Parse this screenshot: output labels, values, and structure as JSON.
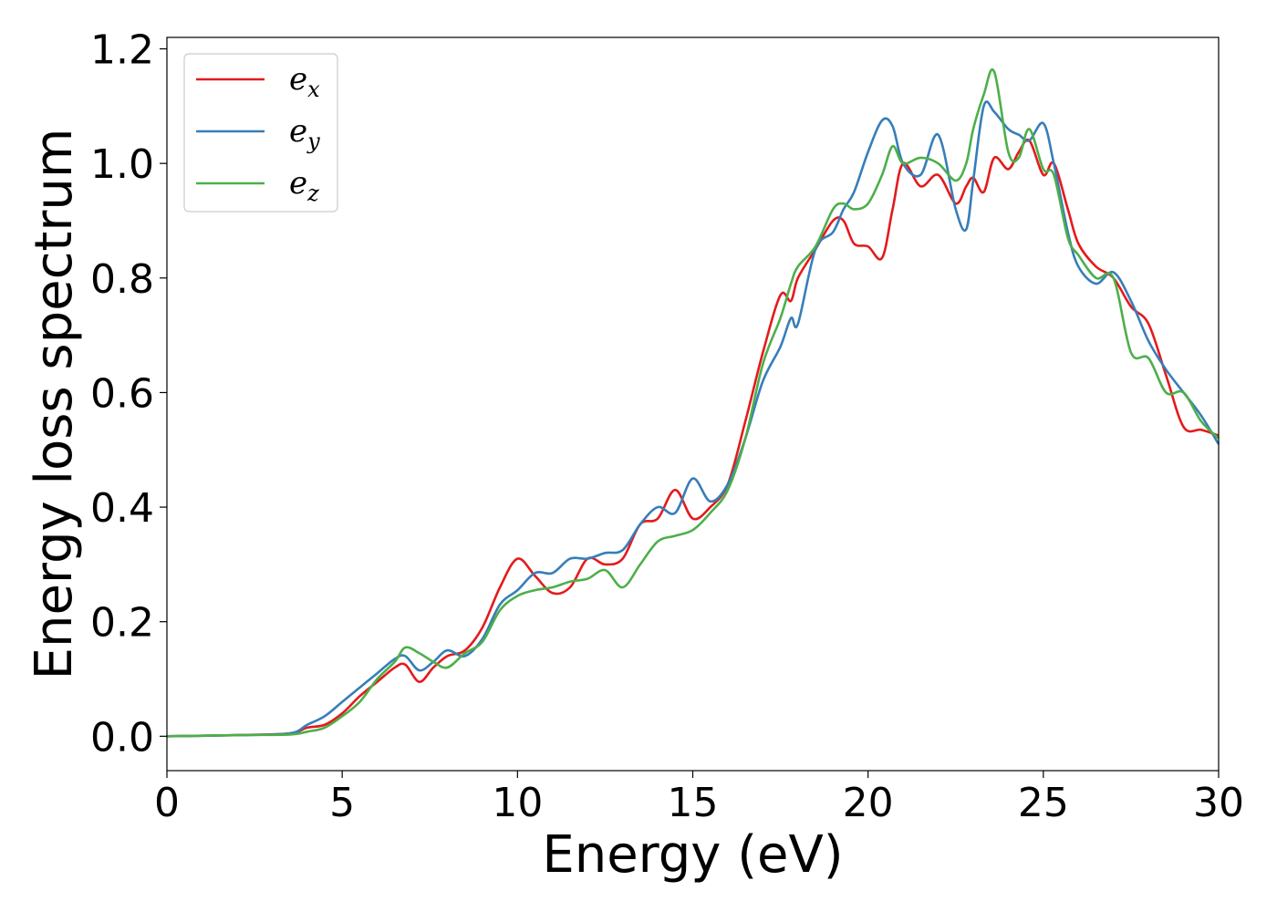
{
  "chart_data": {
    "type": "line",
    "xlabel": "Energy (eV)",
    "ylabel": "Energy loss spectrum",
    "xlim": [
      0,
      30
    ],
    "ylim": [
      -0.06,
      1.22
    ],
    "xticks": [
      0,
      5,
      10,
      15,
      20,
      25,
      30
    ],
    "yticks": [
      0.0,
      0.2,
      0.4,
      0.6,
      0.8,
      1.0,
      1.2
    ],
    "xtick_labels": [
      "0",
      "5",
      "10",
      "15",
      "20",
      "25",
      "30"
    ],
    "ytick_labels": [
      "0.0",
      "0.2",
      "0.4",
      "0.6",
      "0.8",
      "1.0",
      "1.2"
    ],
    "grid": false,
    "legend_position": "top-left",
    "series": [
      {
        "name": "e",
        "subscript": "x",
        "color": "#e41a1c",
        "x": [
          0,
          2,
          3.5,
          4.0,
          4.5,
          5.0,
          5.5,
          6.0,
          6.5,
          6.8,
          7.2,
          7.6,
          8.0,
          8.5,
          9.0,
          9.5,
          10.0,
          10.5,
          11.0,
          11.5,
          12.0,
          12.5,
          13.0,
          13.5,
          14.0,
          14.5,
          15.0,
          15.5,
          16.0,
          16.5,
          17.0,
          17.5,
          17.8,
          18.0,
          18.5,
          19.0,
          19.3,
          19.6,
          20.0,
          20.4,
          20.7,
          21.0,
          21.5,
          22.0,
          22.5,
          22.8,
          23.0,
          23.3,
          23.6,
          24.0,
          24.3,
          24.6,
          25.0,
          25.3,
          25.7,
          26.0,
          26.5,
          27.0,
          27.5,
          28.0,
          28.5,
          29.0,
          29.5,
          30.0
        ],
        "y": [
          0,
          0.002,
          0.005,
          0.015,
          0.02,
          0.04,
          0.07,
          0.095,
          0.12,
          0.125,
          0.095,
          0.12,
          0.14,
          0.15,
          0.19,
          0.26,
          0.31,
          0.28,
          0.25,
          0.26,
          0.31,
          0.3,
          0.31,
          0.37,
          0.38,
          0.43,
          0.38,
          0.4,
          0.44,
          0.55,
          0.67,
          0.77,
          0.76,
          0.8,
          0.85,
          0.9,
          0.9,
          0.86,
          0.855,
          0.835,
          0.92,
          1.0,
          0.96,
          0.98,
          0.93,
          0.96,
          0.975,
          0.95,
          1.01,
          0.99,
          1.02,
          1.04,
          0.98,
          1.0,
          0.92,
          0.86,
          0.82,
          0.8,
          0.75,
          0.72,
          0.63,
          0.54,
          0.535,
          0.525
        ]
      },
      {
        "name": "e",
        "subscript": "y",
        "color": "#377eb8",
        "x": [
          0,
          2,
          3.5,
          4.0,
          4.5,
          5.0,
          5.5,
          6.0,
          6.5,
          6.8,
          7.2,
          7.6,
          8.0,
          8.5,
          9.0,
          9.5,
          10.0,
          10.5,
          11.0,
          11.5,
          12.0,
          12.5,
          13.0,
          13.5,
          14.0,
          14.5,
          15.0,
          15.5,
          16.0,
          16.5,
          17.0,
          17.5,
          17.8,
          18.0,
          18.5,
          19.0,
          19.3,
          19.6,
          20.0,
          20.4,
          20.7,
          21.0,
          21.5,
          22.0,
          22.5,
          22.8,
          23.0,
          23.3,
          23.6,
          24.0,
          24.3,
          24.6,
          25.0,
          25.3,
          25.7,
          26.0,
          26.5,
          27.0,
          27.5,
          28.0,
          28.5,
          29.0,
          29.5,
          30.0
        ],
        "y": [
          0,
          0.002,
          0.005,
          0.02,
          0.035,
          0.06,
          0.085,
          0.11,
          0.135,
          0.14,
          0.115,
          0.13,
          0.15,
          0.14,
          0.17,
          0.23,
          0.255,
          0.285,
          0.285,
          0.31,
          0.31,
          0.32,
          0.325,
          0.37,
          0.4,
          0.39,
          0.45,
          0.41,
          0.44,
          0.52,
          0.62,
          0.68,
          0.73,
          0.72,
          0.85,
          0.88,
          0.92,
          0.95,
          1.02,
          1.075,
          1.065,
          1.0,
          0.98,
          1.05,
          0.92,
          0.885,
          0.97,
          1.1,
          1.09,
          1.06,
          1.05,
          1.04,
          1.07,
          1.0,
          0.88,
          0.82,
          0.79,
          0.81,
          0.76,
          0.69,
          0.64,
          0.6,
          0.56,
          0.51
        ]
      },
      {
        "name": "e",
        "subscript": "z",
        "color": "#4daf4a",
        "x": [
          0,
          2,
          3.5,
          4.0,
          4.5,
          5.0,
          5.5,
          6.0,
          6.5,
          6.8,
          7.2,
          7.6,
          8.0,
          8.5,
          9.0,
          9.5,
          10.0,
          10.5,
          11.0,
          11.5,
          12.0,
          12.5,
          13.0,
          13.5,
          14.0,
          14.5,
          15.0,
          15.5,
          16.0,
          16.5,
          17.0,
          17.5,
          17.8,
          18.0,
          18.5,
          19.0,
          19.3,
          19.6,
          20.0,
          20.4,
          20.7,
          21.0,
          21.5,
          22.0,
          22.5,
          22.8,
          23.0,
          23.3,
          23.6,
          24.0,
          24.3,
          24.6,
          25.0,
          25.3,
          25.7,
          26.0,
          26.5,
          27.0,
          27.5,
          28.0,
          28.5,
          29.0,
          29.5,
          30.0
        ],
        "y": [
          0,
          0.002,
          0.003,
          0.008,
          0.015,
          0.035,
          0.06,
          0.1,
          0.13,
          0.155,
          0.145,
          0.13,
          0.12,
          0.145,
          0.165,
          0.22,
          0.245,
          0.255,
          0.26,
          0.27,
          0.275,
          0.29,
          0.26,
          0.3,
          0.34,
          0.35,
          0.36,
          0.39,
          0.43,
          0.52,
          0.65,
          0.73,
          0.79,
          0.82,
          0.855,
          0.92,
          0.93,
          0.92,
          0.93,
          0.98,
          1.03,
          1.0,
          1.01,
          1.0,
          0.97,
          1.0,
          1.06,
          1.12,
          1.16,
          1.02,
          1.01,
          1.06,
          0.99,
          0.98,
          0.87,
          0.84,
          0.8,
          0.8,
          0.67,
          0.66,
          0.6,
          0.6,
          0.55,
          0.52
        ]
      }
    ]
  }
}
